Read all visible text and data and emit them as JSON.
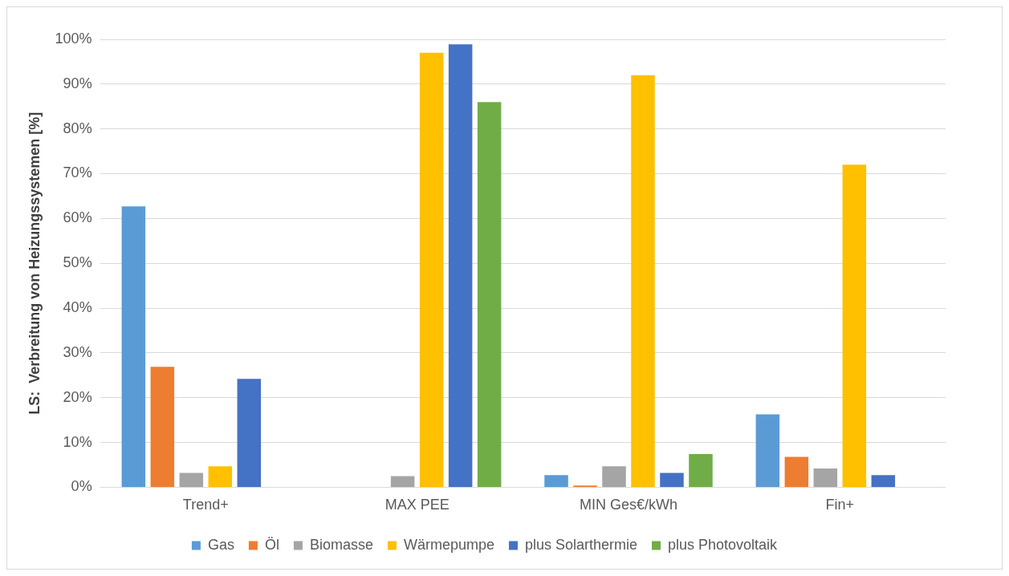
{
  "chart_data": {
    "type": "bar",
    "ylabel": "LS:  Verbreitung von Heizungssystemen [%]",
    "categories": [
      "Trend+",
      "MAX PEE",
      "MIN Ges€/kWh",
      "Fin+"
    ],
    "series": [
      {
        "name": "Gas",
        "color": "#5b9bd5",
        "values": [
          62.7,
          0,
          2.7,
          16.3
        ]
      },
      {
        "name": "Öl",
        "color": "#ed7d31",
        "values": [
          26.9,
          0,
          0.4,
          6.8
        ]
      },
      {
        "name": "Biomasse",
        "color": "#a5a5a5",
        "values": [
          3.2,
          2.5,
          4.7,
          4.2
        ]
      },
      {
        "name": "Wärmepumpe",
        "color": "#ffc000",
        "values": [
          4.7,
          97,
          92,
          72
        ]
      },
      {
        "name": "plus Solarthermie",
        "color": "#4472c4",
        "values": [
          24.2,
          98.9,
          3.2,
          2.7
        ]
      },
      {
        "name": "plus Photovoltaik",
        "color": "#70ad47",
        "values": [
          0,
          86,
          7.4,
          0
        ]
      }
    ],
    "ylim": [
      0,
      100
    ],
    "yticks": [
      {
        "value": 0,
        "label": "0%"
      },
      {
        "value": 10,
        "label": "10%"
      },
      {
        "value": 20,
        "label": "20%"
      },
      {
        "value": 30,
        "label": "30%"
      },
      {
        "value": 40,
        "label": "40%"
      },
      {
        "value": 50,
        "label": "50%"
      },
      {
        "value": 60,
        "label": "60%"
      },
      {
        "value": 70,
        "label": "70%"
      },
      {
        "value": 80,
        "label": "80%"
      },
      {
        "value": 90,
        "label": "90%"
      },
      {
        "value": 100,
        "label": "100%"
      }
    ],
    "grid": "y",
    "legend": "bottom"
  }
}
